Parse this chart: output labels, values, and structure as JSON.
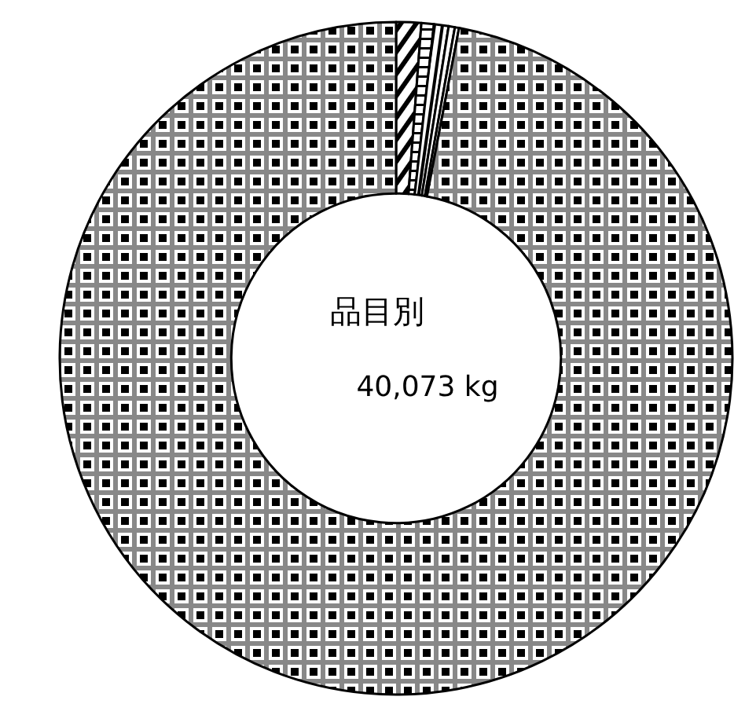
{
  "chart_data": {
    "type": "donut",
    "title": "品目別",
    "annotations": [
      "40,073 kg"
    ],
    "categories": [
      null,
      null,
      null,
      null,
      null,
      null
    ],
    "values": [
      1.2,
      0.6,
      0.7,
      0.3,
      0.2,
      97.0
    ]
  }
}
